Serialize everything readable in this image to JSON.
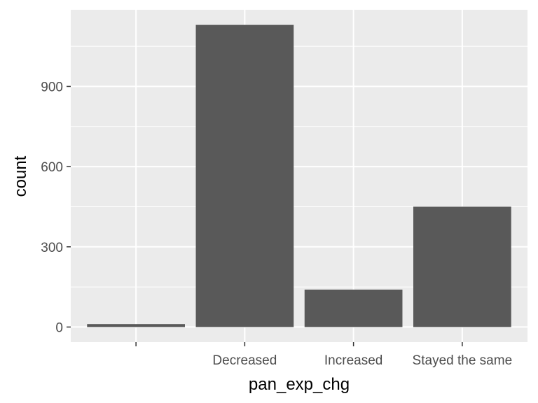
{
  "chart_data": {
    "type": "bar",
    "categories": [
      "",
      "Decreased",
      "Increased",
      "Stayed the same"
    ],
    "values": [
      11,
      1130,
      140,
      450
    ],
    "xlabel": "pan_exp_chg",
    "ylabel": "count",
    "yticks": [
      0,
      300,
      600,
      900
    ],
    "ylim": [
      -56.5,
      1186.5
    ],
    "grid": true,
    "legend": "none"
  },
  "colors": {
    "panel_background": "#ebebeb",
    "grid_major": "#ffffff",
    "bar_fill": "#595959",
    "tick_text": "#4d4d4d",
    "axis_title_text": "#000000"
  }
}
